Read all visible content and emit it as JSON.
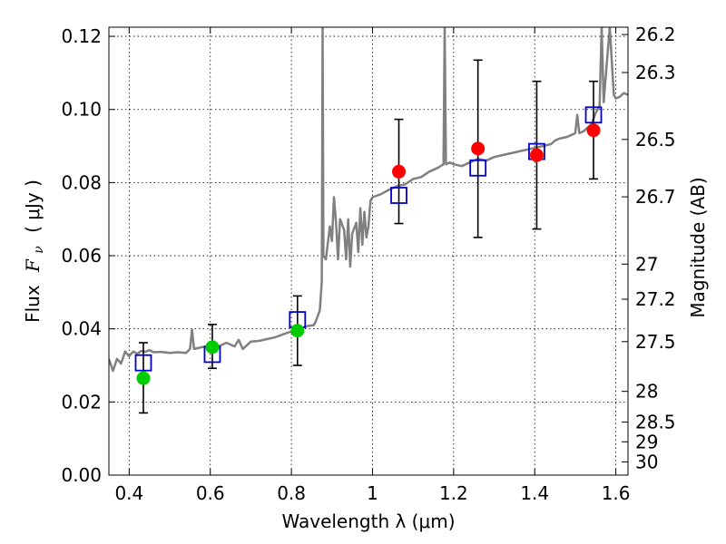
{
  "chart_data": {
    "type": "scatter",
    "xlabel": "Wavelength  λ (μm)",
    "ylabel_text": "Flux",
    "ylabel_symbol": "F",
    "ylabel_subscript": "ν",
    "ylabel_units": "( μJy )",
    "ylabel_right": "Magnitude (AB)",
    "xlim": [
      0.35,
      1.63
    ],
    "ylim": [
      0.0,
      0.1225
    ],
    "x_ticks": [
      0.4,
      0.6,
      0.8,
      1.0,
      1.2,
      1.4,
      1.6
    ],
    "x_tick_labels": [
      "0.4",
      "0.6",
      "0.8",
      "1",
      "1.2",
      "1.4",
      "1.6"
    ],
    "y_ticks": [
      0.0,
      0.02,
      0.04,
      0.06,
      0.08,
      0.1,
      0.12
    ],
    "y_tick_labels": [
      "0.00",
      "0.02",
      "0.04",
      "0.06",
      "0.08",
      "0.10",
      "0.12"
    ],
    "right_ticks": [
      {
        "label": "26.2",
        "flux": 0.1205
      },
      {
        "label": "26.3",
        "flux": 0.1101
      },
      {
        "label": "26.5",
        "flux": 0.0918
      },
      {
        "label": "26.7",
        "flux": 0.0761
      },
      {
        "label": "27",
        "flux": 0.0577
      },
      {
        "label": "27.2",
        "flux": 0.0481
      },
      {
        "label": "27.5",
        "flux": 0.0365
      },
      {
        "label": "28",
        "flux": 0.0229
      },
      {
        "label": "28.5",
        "flux": 0.0145
      },
      {
        "label": "29",
        "flux": 0.0091
      },
      {
        "label": "30",
        "flux": 0.0036
      }
    ],
    "grid": true,
    "model_spectrum": {
      "name": "model SED",
      "color": "#808080",
      "points": [
        [
          0.35,
          0.0318
        ],
        [
          0.36,
          0.0285
        ],
        [
          0.37,
          0.0318
        ],
        [
          0.38,
          0.0305
        ],
        [
          0.39,
          0.0338
        ],
        [
          0.4,
          0.0325
        ],
        [
          0.41,
          0.0338
        ],
        [
          0.42,
          0.0332
        ],
        [
          0.43,
          0.034
        ],
        [
          0.44,
          0.0337
        ],
        [
          0.45,
          0.0342
        ],
        [
          0.46,
          0.0336
        ],
        [
          0.48,
          0.0337
        ],
        [
          0.5,
          0.0334
        ],
        [
          0.52,
          0.0336
        ],
        [
          0.54,
          0.0334
        ],
        [
          0.55,
          0.0345
        ],
        [
          0.555,
          0.0398
        ],
        [
          0.56,
          0.0345
        ],
        [
          0.58,
          0.035
        ],
        [
          0.6,
          0.0355
        ],
        [
          0.62,
          0.0352
        ],
        [
          0.64,
          0.0362
        ],
        [
          0.66,
          0.0352
        ],
        [
          0.67,
          0.037
        ],
        [
          0.68,
          0.0345
        ],
        [
          0.7,
          0.0365
        ],
        [
          0.72,
          0.0367
        ],
        [
          0.74,
          0.0372
        ],
        [
          0.76,
          0.0377
        ],
        [
          0.78,
          0.0385
        ],
        [
          0.8,
          0.0393
        ],
        [
          0.82,
          0.04
        ],
        [
          0.84,
          0.0408
        ],
        [
          0.855,
          0.041
        ],
        [
          0.86,
          0.042
        ],
        [
          0.87,
          0.045
        ],
        [
          0.875,
          0.053
        ],
        [
          0.877,
          0.1225
        ],
        [
          0.879,
          0.06
        ],
        [
          0.885,
          0.059
        ],
        [
          0.895,
          0.068
        ],
        [
          0.9,
          0.064
        ],
        [
          0.905,
          0.076
        ],
        [
          0.91,
          0.069
        ],
        [
          0.915,
          0.059
        ],
        [
          0.92,
          0.07
        ],
        [
          0.93,
          0.067
        ],
        [
          0.935,
          0.059
        ],
        [
          0.94,
          0.07
        ],
        [
          0.945,
          0.057
        ],
        [
          0.95,
          0.066
        ],
        [
          0.96,
          0.069
        ],
        [
          0.965,
          0.061
        ],
        [
          0.97,
          0.073
        ],
        [
          0.975,
          0.063
        ],
        [
          0.98,
          0.072
        ],
        [
          0.985,
          0.065
        ],
        [
          0.99,
          0.068
        ],
        [
          0.995,
          0.075
        ],
        [
          1.0,
          0.076
        ],
        [
          1.02,
          0.0768
        ],
        [
          1.04,
          0.078
        ],
        [
          1.06,
          0.079
        ],
        [
          1.08,
          0.0795
        ],
        [
          1.1,
          0.081
        ],
        [
          1.12,
          0.0815
        ],
        [
          1.14,
          0.083
        ],
        [
          1.16,
          0.084
        ],
        [
          1.175,
          0.085
        ],
        [
          1.178,
          0.1225
        ],
        [
          1.181,
          0.085
        ],
        [
          1.19,
          0.0855
        ],
        [
          1.2,
          0.085
        ],
        [
          1.22,
          0.0845
        ],
        [
          1.24,
          0.0855
        ],
        [
          1.26,
          0.0865
        ],
        [
          1.28,
          0.086
        ],
        [
          1.3,
          0.087
        ],
        [
          1.32,
          0.0875
        ],
        [
          1.34,
          0.088
        ],
        [
          1.36,
          0.0885
        ],
        [
          1.38,
          0.089
        ],
        [
          1.4,
          0.0895
        ],
        [
          1.42,
          0.09
        ],
        [
          1.44,
          0.0905
        ],
        [
          1.45,
          0.0915
        ],
        [
          1.46,
          0.092
        ],
        [
          1.48,
          0.0925
        ],
        [
          1.5,
          0.0935
        ],
        [
          1.505,
          0.0985
        ],
        [
          1.51,
          0.0935
        ],
        [
          1.52,
          0.094
        ],
        [
          1.53,
          0.095
        ],
        [
          1.54,
          0.096
        ],
        [
          1.55,
          0.099
        ],
        [
          1.56,
          0.101
        ],
        [
          1.565,
          0.1225
        ],
        [
          1.57,
          0.102
        ],
        [
          1.585,
          0.1225
        ],
        [
          1.595,
          0.104
        ],
        [
          1.6,
          0.103
        ],
        [
          1.61,
          0.1035
        ],
        [
          1.62,
          0.1045
        ],
        [
          1.63,
          0.104
        ]
      ]
    },
    "synthetic_photometry": {
      "name": "model photometry",
      "color": "#0000cc",
      "points": [
        {
          "x": 0.435,
          "y": 0.0307
        },
        {
          "x": 0.605,
          "y": 0.033
        },
        {
          "x": 0.815,
          "y": 0.0425
        },
        {
          "x": 1.065,
          "y": 0.0765
        },
        {
          "x": 1.26,
          "y": 0.084
        },
        {
          "x": 1.405,
          "y": 0.0885
        },
        {
          "x": 1.545,
          "y": 0.0985
        }
      ]
    },
    "observed": {
      "name": "observed photometry",
      "points": [
        {
          "x": 0.435,
          "y": 0.0265,
          "err_low": 0.017,
          "err_high": 0.0362,
          "color": "#00cc00"
        },
        {
          "x": 0.605,
          "y": 0.035,
          "err_low": 0.0292,
          "err_high": 0.0412,
          "color": "#00cc00"
        },
        {
          "x": 0.815,
          "y": 0.0395,
          "err_low": 0.03,
          "err_high": 0.049,
          "color": "#00cc00"
        },
        {
          "x": 1.065,
          "y": 0.083,
          "err_low": 0.0688,
          "err_high": 0.0973,
          "color": "#ff0000"
        },
        {
          "x": 1.26,
          "y": 0.0893,
          "err_low": 0.065,
          "err_high": 0.1135,
          "color": "#ff0000"
        },
        {
          "x": 1.405,
          "y": 0.0875,
          "err_low": 0.0673,
          "err_high": 0.1077,
          "color": "#ff0000"
        },
        {
          "x": 1.545,
          "y": 0.0943,
          "err_low": 0.081,
          "err_high": 0.1077,
          "color": "#ff0000"
        }
      ]
    }
  }
}
